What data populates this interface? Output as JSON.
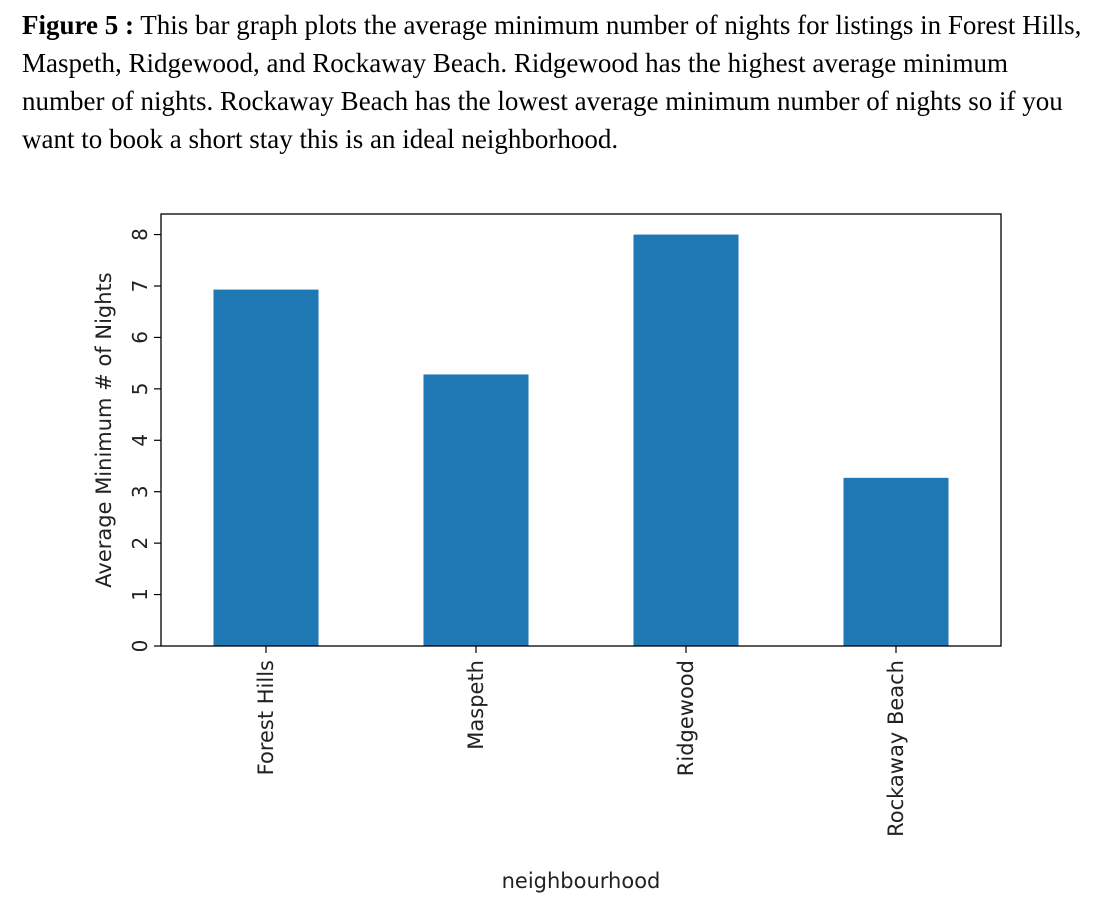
{
  "caption": {
    "label": "Figure 5 :",
    "text": " This bar graph plots the average minimum number of nights for listings in Forest Hills, Maspeth, Ridgewood, and Rockaway Beach. Ridgewood has the highest average minimum number of nights. Rockaway Beach has the lowest average minimum number of nights so if you want to book a short stay this is an ideal neighborhood."
  },
  "chart_data": {
    "type": "bar",
    "title": "",
    "xlabel": "neighbourhood",
    "ylabel": "Average Minimum # of Nights",
    "categories": [
      "Forest Hills",
      "Maspeth",
      "Ridgewood",
      "Rockaway Beach"
    ],
    "values": [
      6.93,
      5.28,
      8.0,
      3.27
    ],
    "ylim": [
      0,
      8.4
    ],
    "yticks": [
      "0",
      "1",
      "2",
      "3",
      "4",
      "5",
      "6",
      "7",
      "8"
    ],
    "grid": false,
    "legend": "none",
    "bar_color": "#1f77b4"
  }
}
